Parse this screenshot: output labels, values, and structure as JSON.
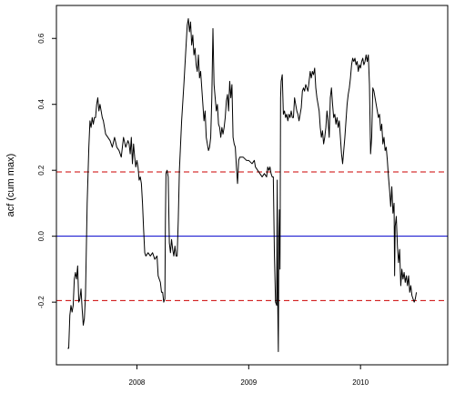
{
  "chart_data": {
    "type": "line",
    "title": "",
    "xlabel": "",
    "ylabel": "acf (cum max)",
    "xlim": [
      2007.28,
      2010.78
    ],
    "ylim": [
      -0.39,
      0.7
    ],
    "x_ticks": [
      {
        "value": 2008,
        "label": "2008"
      },
      {
        "value": 2009,
        "label": "2009"
      },
      {
        "value": 2010,
        "label": "2010"
      }
    ],
    "y_ticks": [
      {
        "value": -0.2,
        "label": "-0.2"
      },
      {
        "value": 0.0,
        "label": "0.0"
      },
      {
        "value": 0.2,
        "label": "0.2"
      },
      {
        "value": 0.4,
        "label": "0.4"
      },
      {
        "value": 0.6,
        "label": "0.6"
      }
    ],
    "reference_lines": [
      {
        "y": 0.0,
        "color": "#0000cc",
        "style": "solid"
      },
      {
        "y": 0.195,
        "color": "#cc0000",
        "style": "dashed"
      },
      {
        "y": -0.195,
        "color": "#cc0000",
        "style": "dashed"
      }
    ],
    "grid": false,
    "series": [
      {
        "color": "#000000",
        "points": [
          [
            2007.38,
            -0.34
          ],
          [
            2007.39,
            -0.34
          ],
          [
            2007.4,
            -0.24
          ],
          [
            2007.41,
            -0.21
          ],
          [
            2007.42,
            -0.23
          ],
          [
            2007.43,
            -0.21
          ],
          [
            2007.44,
            -0.13
          ],
          [
            2007.45,
            -0.11
          ],
          [
            2007.46,
            -0.13
          ],
          [
            2007.47,
            -0.09
          ],
          [
            2007.48,
            -0.2
          ],
          [
            2007.49,
            -0.19
          ],
          [
            2007.5,
            -0.16
          ],
          [
            2007.51,
            -0.22
          ],
          [
            2007.52,
            -0.27
          ],
          [
            2007.53,
            -0.25
          ],
          [
            2007.54,
            -0.18
          ],
          [
            2007.555,
            0.1
          ],
          [
            2007.57,
            0.27
          ],
          [
            2007.58,
            0.35
          ],
          [
            2007.59,
            0.33
          ],
          [
            2007.6,
            0.36
          ],
          [
            2007.61,
            0.34
          ],
          [
            2007.62,
            0.36
          ],
          [
            2007.63,
            0.36
          ],
          [
            2007.64,
            0.4
          ],
          [
            2007.65,
            0.42
          ],
          [
            2007.66,
            0.38
          ],
          [
            2007.67,
            0.4
          ],
          [
            2007.68,
            0.38
          ],
          [
            2007.69,
            0.36
          ],
          [
            2007.7,
            0.35
          ],
          [
            2007.72,
            0.31
          ],
          [
            2007.74,
            0.3
          ],
          [
            2007.76,
            0.29
          ],
          [
            2007.78,
            0.27
          ],
          [
            2007.8,
            0.3
          ],
          [
            2007.82,
            0.27
          ],
          [
            2007.84,
            0.26
          ],
          [
            2007.86,
            0.24
          ],
          [
            2007.88,
            0.3
          ],
          [
            2007.9,
            0.27
          ],
          [
            2007.92,
            0.29
          ],
          [
            2007.93,
            0.28
          ],
          [
            2007.94,
            0.25
          ],
          [
            2007.95,
            0.3
          ],
          [
            2007.96,
            0.22
          ],
          [
            2007.97,
            0.28
          ],
          [
            2007.98,
            0.24
          ],
          [
            2007.99,
            0.21
          ],
          [
            2008.0,
            0.23
          ],
          [
            2008.01,
            0.21
          ],
          [
            2008.02,
            0.17
          ],
          [
            2008.03,
            0.18
          ],
          [
            2008.04,
            0.16
          ],
          [
            2008.05,
            0.1
          ],
          [
            2008.06,
            0.02
          ],
          [
            2008.07,
            -0.05
          ],
          [
            2008.08,
            -0.06
          ],
          [
            2008.1,
            -0.05
          ],
          [
            2008.12,
            -0.06
          ],
          [
            2008.14,
            -0.05
          ],
          [
            2008.16,
            -0.07
          ],
          [
            2008.18,
            -0.06
          ],
          [
            2008.19,
            -0.12
          ],
          [
            2008.2,
            -0.13
          ],
          [
            2008.21,
            -0.14
          ],
          [
            2008.22,
            -0.17
          ],
          [
            2008.23,
            -0.17
          ],
          [
            2008.24,
            -0.2
          ],
          [
            2008.25,
            -0.19
          ],
          [
            2008.255,
            0.05
          ],
          [
            2008.26,
            0.19
          ],
          [
            2008.27,
            0.2
          ],
          [
            2008.28,
            0.18
          ],
          [
            2008.29,
            -0.02
          ],
          [
            2008.3,
            -0.05
          ],
          [
            2008.31,
            -0.01
          ],
          [
            2008.32,
            -0.04
          ],
          [
            2008.33,
            -0.06
          ],
          [
            2008.34,
            -0.03
          ],
          [
            2008.35,
            -0.06
          ],
          [
            2008.36,
            -0.06
          ],
          [
            2008.37,
            0.05
          ],
          [
            2008.38,
            0.2
          ],
          [
            2008.4,
            0.35
          ],
          [
            2008.42,
            0.46
          ],
          [
            2008.44,
            0.58
          ],
          [
            2008.45,
            0.64
          ],
          [
            2008.46,
            0.66
          ],
          [
            2008.47,
            0.62
          ],
          [
            2008.48,
            0.65
          ],
          [
            2008.49,
            0.58
          ],
          [
            2008.5,
            0.61
          ],
          [
            2008.51,
            0.55
          ],
          [
            2008.52,
            0.57
          ],
          [
            2008.53,
            0.52
          ],
          [
            2008.54,
            0.5
          ],
          [
            2008.55,
            0.55
          ],
          [
            2008.56,
            0.48
          ],
          [
            2008.57,
            0.5
          ],
          [
            2008.58,
            0.45
          ],
          [
            2008.59,
            0.4
          ],
          [
            2008.6,
            0.35
          ],
          [
            2008.61,
            0.38
          ],
          [
            2008.62,
            0.3
          ],
          [
            2008.63,
            0.28
          ],
          [
            2008.64,
            0.26
          ],
          [
            2008.65,
            0.27
          ],
          [
            2008.66,
            0.3
          ],
          [
            2008.67,
            0.42
          ],
          [
            2008.68,
            0.63
          ],
          [
            2008.69,
            0.46
          ],
          [
            2008.7,
            0.42
          ],
          [
            2008.71,
            0.38
          ],
          [
            2008.72,
            0.4
          ],
          [
            2008.73,
            0.34
          ],
          [
            2008.74,
            0.33
          ],
          [
            2008.75,
            0.3
          ],
          [
            2008.76,
            0.33
          ],
          [
            2008.77,
            0.31
          ],
          [
            2008.78,
            0.33
          ],
          [
            2008.79,
            0.36
          ],
          [
            2008.8,
            0.41
          ],
          [
            2008.81,
            0.43
          ],
          [
            2008.82,
            0.38
          ],
          [
            2008.83,
            0.47
          ],
          [
            2008.84,
            0.42
          ],
          [
            2008.85,
            0.46
          ],
          [
            2008.86,
            0.3
          ],
          [
            2008.87,
            0.28
          ],
          [
            2008.88,
            0.27
          ],
          [
            2008.89,
            0.21
          ],
          [
            2008.9,
            0.16
          ],
          [
            2008.91,
            0.23
          ],
          [
            2008.92,
            0.24
          ],
          [
            2008.95,
            0.24
          ],
          [
            2008.98,
            0.23
          ],
          [
            2009.0,
            0.23
          ],
          [
            2009.03,
            0.22
          ],
          [
            2009.05,
            0.23
          ],
          [
            2009.06,
            0.21
          ],
          [
            2009.08,
            0.2
          ],
          [
            2009.1,
            0.19
          ],
          [
            2009.12,
            0.18
          ],
          [
            2009.14,
            0.19
          ],
          [
            2009.16,
            0.18
          ],
          [
            2009.17,
            0.21
          ],
          [
            2009.18,
            0.2
          ],
          [
            2009.19,
            0.21
          ],
          [
            2009.2,
            0.19
          ],
          [
            2009.21,
            0.18
          ],
          [
            2009.22,
            0.18
          ],
          [
            2009.23,
            -0.06
          ],
          [
            2009.24,
            -0.2
          ],
          [
            2009.25,
            -0.21
          ],
          [
            2009.255,
            0.17
          ],
          [
            2009.26,
            -0.22
          ],
          [
            2009.265,
            -0.35
          ],
          [
            2009.27,
            0.0
          ],
          [
            2009.275,
            0.08
          ],
          [
            2009.28,
            -0.1
          ],
          [
            2009.285,
            0.42
          ],
          [
            2009.29,
            0.47
          ],
          [
            2009.3,
            0.49
          ],
          [
            2009.31,
            0.37
          ],
          [
            2009.32,
            0.38
          ],
          [
            2009.33,
            0.36
          ],
          [
            2009.34,
            0.37
          ],
          [
            2009.35,
            0.35
          ],
          [
            2009.36,
            0.37
          ],
          [
            2009.37,
            0.36
          ],
          [
            2009.38,
            0.38
          ],
          [
            2009.39,
            0.36
          ],
          [
            2009.4,
            0.36
          ],
          [
            2009.41,
            0.42
          ],
          [
            2009.42,
            0.4
          ],
          [
            2009.43,
            0.38
          ],
          [
            2009.44,
            0.37
          ],
          [
            2009.45,
            0.35
          ],
          [
            2009.46,
            0.37
          ],
          [
            2009.47,
            0.39
          ],
          [
            2009.48,
            0.44
          ],
          [
            2009.49,
            0.45
          ],
          [
            2009.5,
            0.44
          ],
          [
            2009.51,
            0.46
          ],
          [
            2009.52,
            0.45
          ],
          [
            2009.53,
            0.44
          ],
          [
            2009.54,
            0.47
          ],
          [
            2009.55,
            0.5
          ],
          [
            2009.56,
            0.48
          ],
          [
            2009.57,
            0.5
          ],
          [
            2009.58,
            0.49
          ],
          [
            2009.59,
            0.51
          ],
          [
            2009.6,
            0.45
          ],
          [
            2009.61,
            0.42
          ],
          [
            2009.62,
            0.4
          ],
          [
            2009.63,
            0.38
          ],
          [
            2009.64,
            0.33
          ],
          [
            2009.65,
            0.3
          ],
          [
            2009.66,
            0.32
          ],
          [
            2009.67,
            0.28
          ],
          [
            2009.68,
            0.3
          ],
          [
            2009.69,
            0.33
          ],
          [
            2009.7,
            0.38
          ],
          [
            2009.71,
            0.35
          ],
          [
            2009.72,
            0.3
          ],
          [
            2009.73,
            0.42
          ],
          [
            2009.74,
            0.45
          ],
          [
            2009.75,
            0.4
          ],
          [
            2009.76,
            0.36
          ],
          [
            2009.77,
            0.37
          ],
          [
            2009.78,
            0.34
          ],
          [
            2009.79,
            0.36
          ],
          [
            2009.8,
            0.33
          ],
          [
            2009.81,
            0.35
          ],
          [
            2009.82,
            0.3
          ],
          [
            2009.83,
            0.25
          ],
          [
            2009.84,
            0.22
          ],
          [
            2009.85,
            0.26
          ],
          [
            2009.86,
            0.3
          ],
          [
            2009.87,
            0.35
          ],
          [
            2009.88,
            0.4
          ],
          [
            2009.89,
            0.43
          ],
          [
            2009.9,
            0.45
          ],
          [
            2009.91,
            0.48
          ],
          [
            2009.92,
            0.52
          ],
          [
            2009.93,
            0.54
          ],
          [
            2009.94,
            0.53
          ],
          [
            2009.95,
            0.54
          ],
          [
            2009.96,
            0.52
          ],
          [
            2009.97,
            0.53
          ],
          [
            2009.98,
            0.5
          ],
          [
            2009.99,
            0.52
          ],
          [
            2010.0,
            0.51
          ],
          [
            2010.01,
            0.53
          ],
          [
            2010.02,
            0.54
          ],
          [
            2010.03,
            0.52
          ],
          [
            2010.04,
            0.53
          ],
          [
            2010.05,
            0.55
          ],
          [
            2010.06,
            0.53
          ],
          [
            2010.07,
            0.55
          ],
          [
            2010.08,
            0.46
          ],
          [
            2010.09,
            0.25
          ],
          [
            2010.1,
            0.3
          ],
          [
            2010.11,
            0.45
          ],
          [
            2010.12,
            0.44
          ],
          [
            2010.13,
            0.42
          ],
          [
            2010.14,
            0.4
          ],
          [
            2010.15,
            0.38
          ],
          [
            2010.16,
            0.36
          ],
          [
            2010.17,
            0.37
          ],
          [
            2010.18,
            0.32
          ],
          [
            2010.19,
            0.34
          ],
          [
            2010.2,
            0.28
          ],
          [
            2010.21,
            0.3
          ],
          [
            2010.22,
            0.26
          ],
          [
            2010.23,
            0.27
          ],
          [
            2010.24,
            0.23
          ],
          [
            2010.25,
            0.18
          ],
          [
            2010.26,
            0.14
          ],
          [
            2010.27,
            0.09
          ],
          [
            2010.28,
            0.15
          ],
          [
            2010.29,
            0.07
          ],
          [
            2010.3,
            0.1
          ],
          [
            2010.305,
            -0.12
          ],
          [
            2010.31,
            0.03
          ],
          [
            2010.32,
            0.06
          ],
          [
            2010.33,
            -0.03
          ],
          [
            2010.34,
            -0.08
          ],
          [
            2010.35,
            -0.04
          ],
          [
            2010.36,
            -0.15
          ],
          [
            2010.37,
            -0.1
          ],
          [
            2010.38,
            -0.13
          ],
          [
            2010.39,
            -0.11
          ],
          [
            2010.4,
            -0.14
          ],
          [
            2010.41,
            -0.12
          ],
          [
            2010.42,
            -0.15
          ],
          [
            2010.43,
            -0.12
          ],
          [
            2010.44,
            -0.17
          ],
          [
            2010.45,
            -0.15
          ],
          [
            2010.46,
            -0.18
          ],
          [
            2010.47,
            -0.19
          ],
          [
            2010.48,
            -0.2
          ],
          [
            2010.49,
            -0.19
          ],
          [
            2010.5,
            -0.17
          ]
        ]
      }
    ]
  }
}
